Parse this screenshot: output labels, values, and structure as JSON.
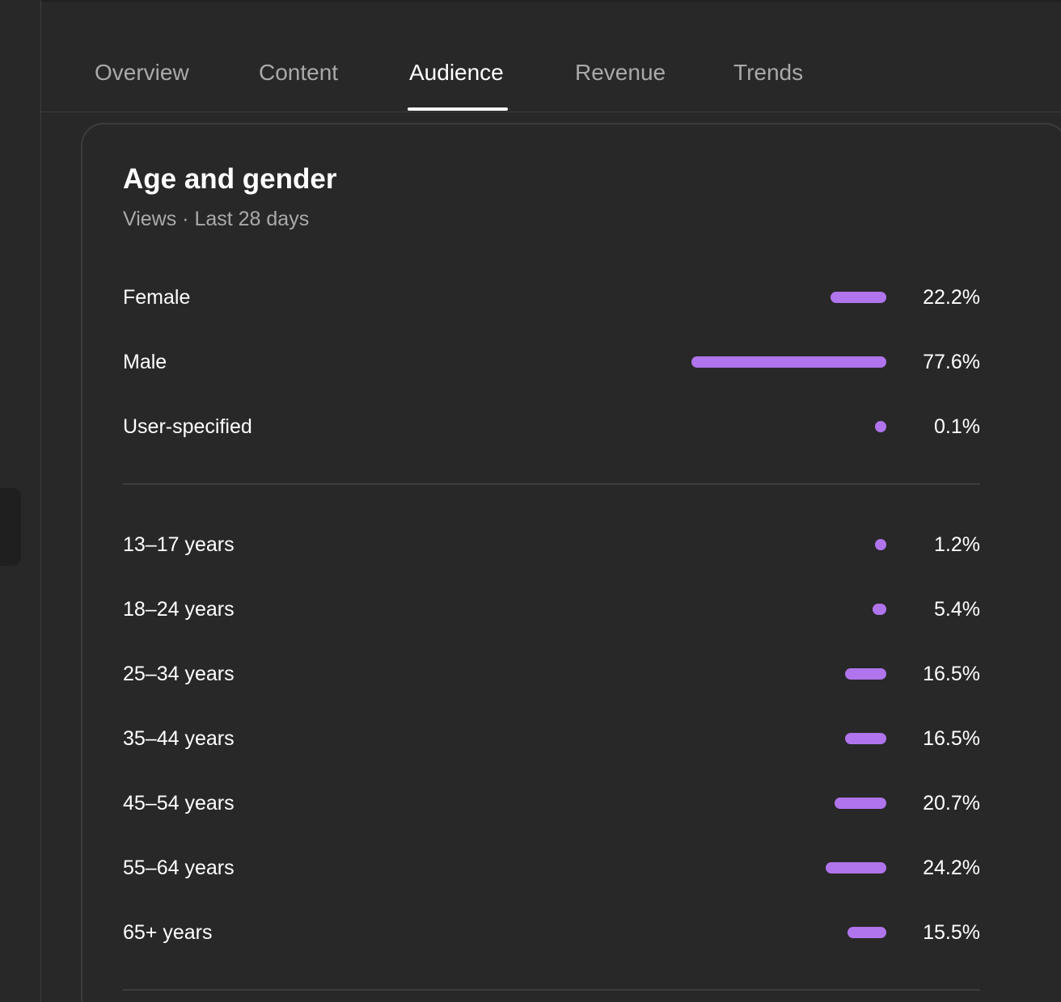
{
  "tabs": [
    {
      "label": "Overview",
      "active": false
    },
    {
      "label": "Content",
      "active": false
    },
    {
      "label": "Audience",
      "active": true
    },
    {
      "label": "Revenue",
      "active": false
    },
    {
      "label": "Trends",
      "active": false
    }
  ],
  "card": {
    "title": "Age and gender",
    "subtitle": "Views · Last 28 days"
  },
  "colors": {
    "bar": "#b074ec",
    "background": "#282828",
    "divider": "#3d3d3d"
  },
  "gender": [
    {
      "label": "Female",
      "value": 22.2,
      "display": "22.2%"
    },
    {
      "label": "Male",
      "value": 77.6,
      "display": "77.6%"
    },
    {
      "label": "User-specified",
      "value": 0.1,
      "display": "0.1%"
    }
  ],
  "age": [
    {
      "label": "13–17 years",
      "value": 1.2,
      "display": "1.2%"
    },
    {
      "label": "18–24 years",
      "value": 5.4,
      "display": "5.4%"
    },
    {
      "label": "25–34 years",
      "value": 16.5,
      "display": "16.5%"
    },
    {
      "label": "35–44 years",
      "value": 16.5,
      "display": "16.5%"
    },
    {
      "label": "45–54 years",
      "value": 20.7,
      "display": "20.7%"
    },
    {
      "label": "55–64 years",
      "value": 24.2,
      "display": "24.2%"
    },
    {
      "label": "65+ years",
      "value": 15.5,
      "display": "15.5%"
    }
  ]
}
